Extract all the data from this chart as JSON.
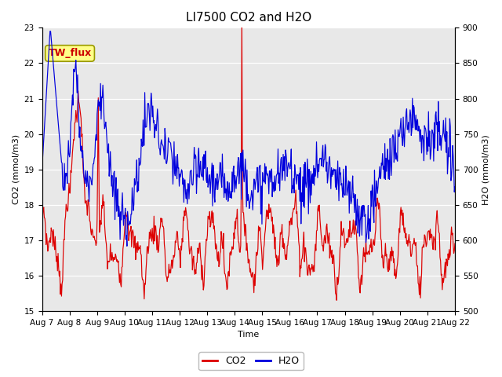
{
  "title": "LI7500 CO2 and H2O",
  "xlabel": "Time",
  "ylabel_left": "CO2 (mmol/m3)",
  "ylabel_right": "H2O (mmol/m3)",
  "co2_ylim": [
    15.0,
    23.0
  ],
  "h2o_ylim": [
    500,
    900
  ],
  "co2_color": "#dd0000",
  "h2o_color": "#0000dd",
  "fig_bg_color": "#ffffff",
  "plot_bg_color": "#e8e8e8",
  "annotation_text": "TW_flux",
  "annotation_bg": "#ffff88",
  "annotation_border": "#999900",
  "x_tick_labels": [
    "Aug 7",
    "Aug 8",
    "Aug 9",
    "Aug 10",
    "Aug 11",
    "Aug 12",
    "Aug 13",
    "Aug 14",
    "Aug 15",
    "Aug 16",
    "Aug 17",
    "Aug 18",
    "Aug 19",
    "Aug 20",
    "Aug 21",
    "Aug 22"
  ],
  "title_fontsize": 11,
  "axis_label_fontsize": 8,
  "tick_fontsize": 7.5,
  "legend_fontsize": 9
}
